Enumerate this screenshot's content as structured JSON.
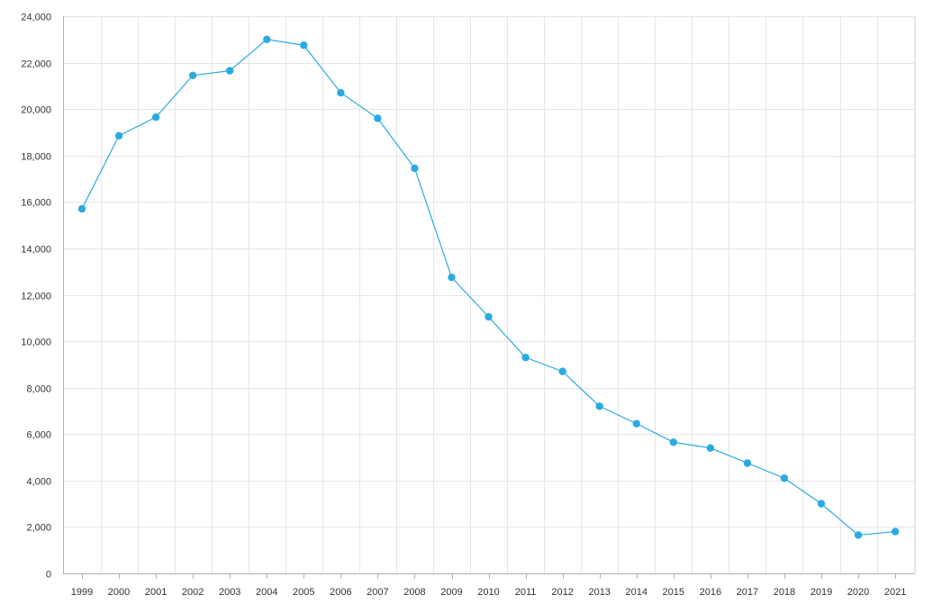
{
  "chart_data": {
    "type": "line",
    "title": "",
    "xlabel": "",
    "ylabel": "",
    "ylim": [
      0,
      24000
    ],
    "y_ticks": [
      "0",
      "2,000",
      "4,000",
      "6,000",
      "8,000",
      "10,000",
      "12,000",
      "14,000",
      "16,000",
      "18,000",
      "20,000",
      "22,000",
      "24,000"
    ],
    "grid": true,
    "legend": "none",
    "colors": {
      "series": "#29abe2",
      "grid": "#e6e6e6",
      "axis": "#b3b3b3",
      "text": "#333333"
    },
    "categories": [
      "1999",
      "2000",
      "2001",
      "2002",
      "2003",
      "2004",
      "2005",
      "2006",
      "2007",
      "2008",
      "2009",
      "2010",
      "2011",
      "2012",
      "2013",
      "2014",
      "2015",
      "2016",
      "2017",
      "2018",
      "2019",
      "2020",
      "2021"
    ],
    "series": [
      {
        "values": [
          15700,
          18850,
          19650,
          21450,
          21650,
          23000,
          22750,
          20700,
          19600,
          17450,
          12750,
          11050,
          9300,
          8700,
          7200,
          6450,
          5650,
          5400,
          4750,
          4100,
          3000,
          1650,
          1800
        ]
      }
    ]
  }
}
